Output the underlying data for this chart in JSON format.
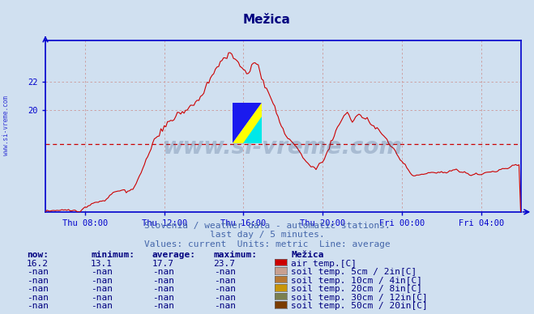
{
  "title": "Mežica",
  "title_color": "#000080",
  "bg_color": "#d0e0f0",
  "plot_bg_color": "#d0e0f0",
  "line_color": "#cc0000",
  "avg_value": 17.7,
  "y_ticks": [
    20,
    22
  ],
  "ylim_min": 13.0,
  "ylim_max": 24.8,
  "x_labels": [
    "Thu 08:00",
    "Thu 12:00",
    "Thu 16:00",
    "Thu 20:00",
    "Fri 00:00",
    "Fri 04:00"
  ],
  "tick_hours": [
    2,
    6,
    10,
    14,
    18,
    22
  ],
  "axis_color": "#0000cc",
  "grid_color": "#cc9999",
  "watermark": "www.si-vreme.com",
  "watermark_color": "#1a3a6a",
  "subtitle1": "Slovenia / weather data - automatic stations.",
  "subtitle2": "last day / 5 minutes.",
  "subtitle3": "Values: current  Units: metric  Line: average",
  "subtitle_color": "#4466aa",
  "table_headers": [
    "now:",
    "minimum:",
    "average:",
    "maximum:",
    "Mežica"
  ],
  "table_color": "#000080",
  "table_rows": [
    {
      "now": "16.2",
      "min": "13.1",
      "avg": "17.7",
      "max": "23.7",
      "color": "#cc0000",
      "label": "air temp.[C]"
    },
    {
      "now": "-nan",
      "min": "-nan",
      "avg": "-nan",
      "max": "-nan",
      "color": "#c8a090",
      "label": "soil temp. 5cm / 2in[C]"
    },
    {
      "now": "-nan",
      "min": "-nan",
      "avg": "-nan",
      "max": "-nan",
      "color": "#b87832",
      "label": "soil temp. 10cm / 4in[C]"
    },
    {
      "now": "-nan",
      "min": "-nan",
      "avg": "-nan",
      "max": "-nan",
      "color": "#c8960a",
      "label": "soil temp. 20cm / 8in[C]"
    },
    {
      "now": "-nan",
      "min": "-nan",
      "avg": "-nan",
      "max": "-nan",
      "color": "#7a8050",
      "label": "soil temp. 30cm / 12in[C]"
    },
    {
      "now": "-nan",
      "min": "-nan",
      "avg": "-nan",
      "max": "-nan",
      "color": "#7a3c00",
      "label": "soil temp. 50cm / 20in[C]"
    }
  ],
  "figsize": [
    6.59,
    3.88
  ],
  "dpi": 100
}
